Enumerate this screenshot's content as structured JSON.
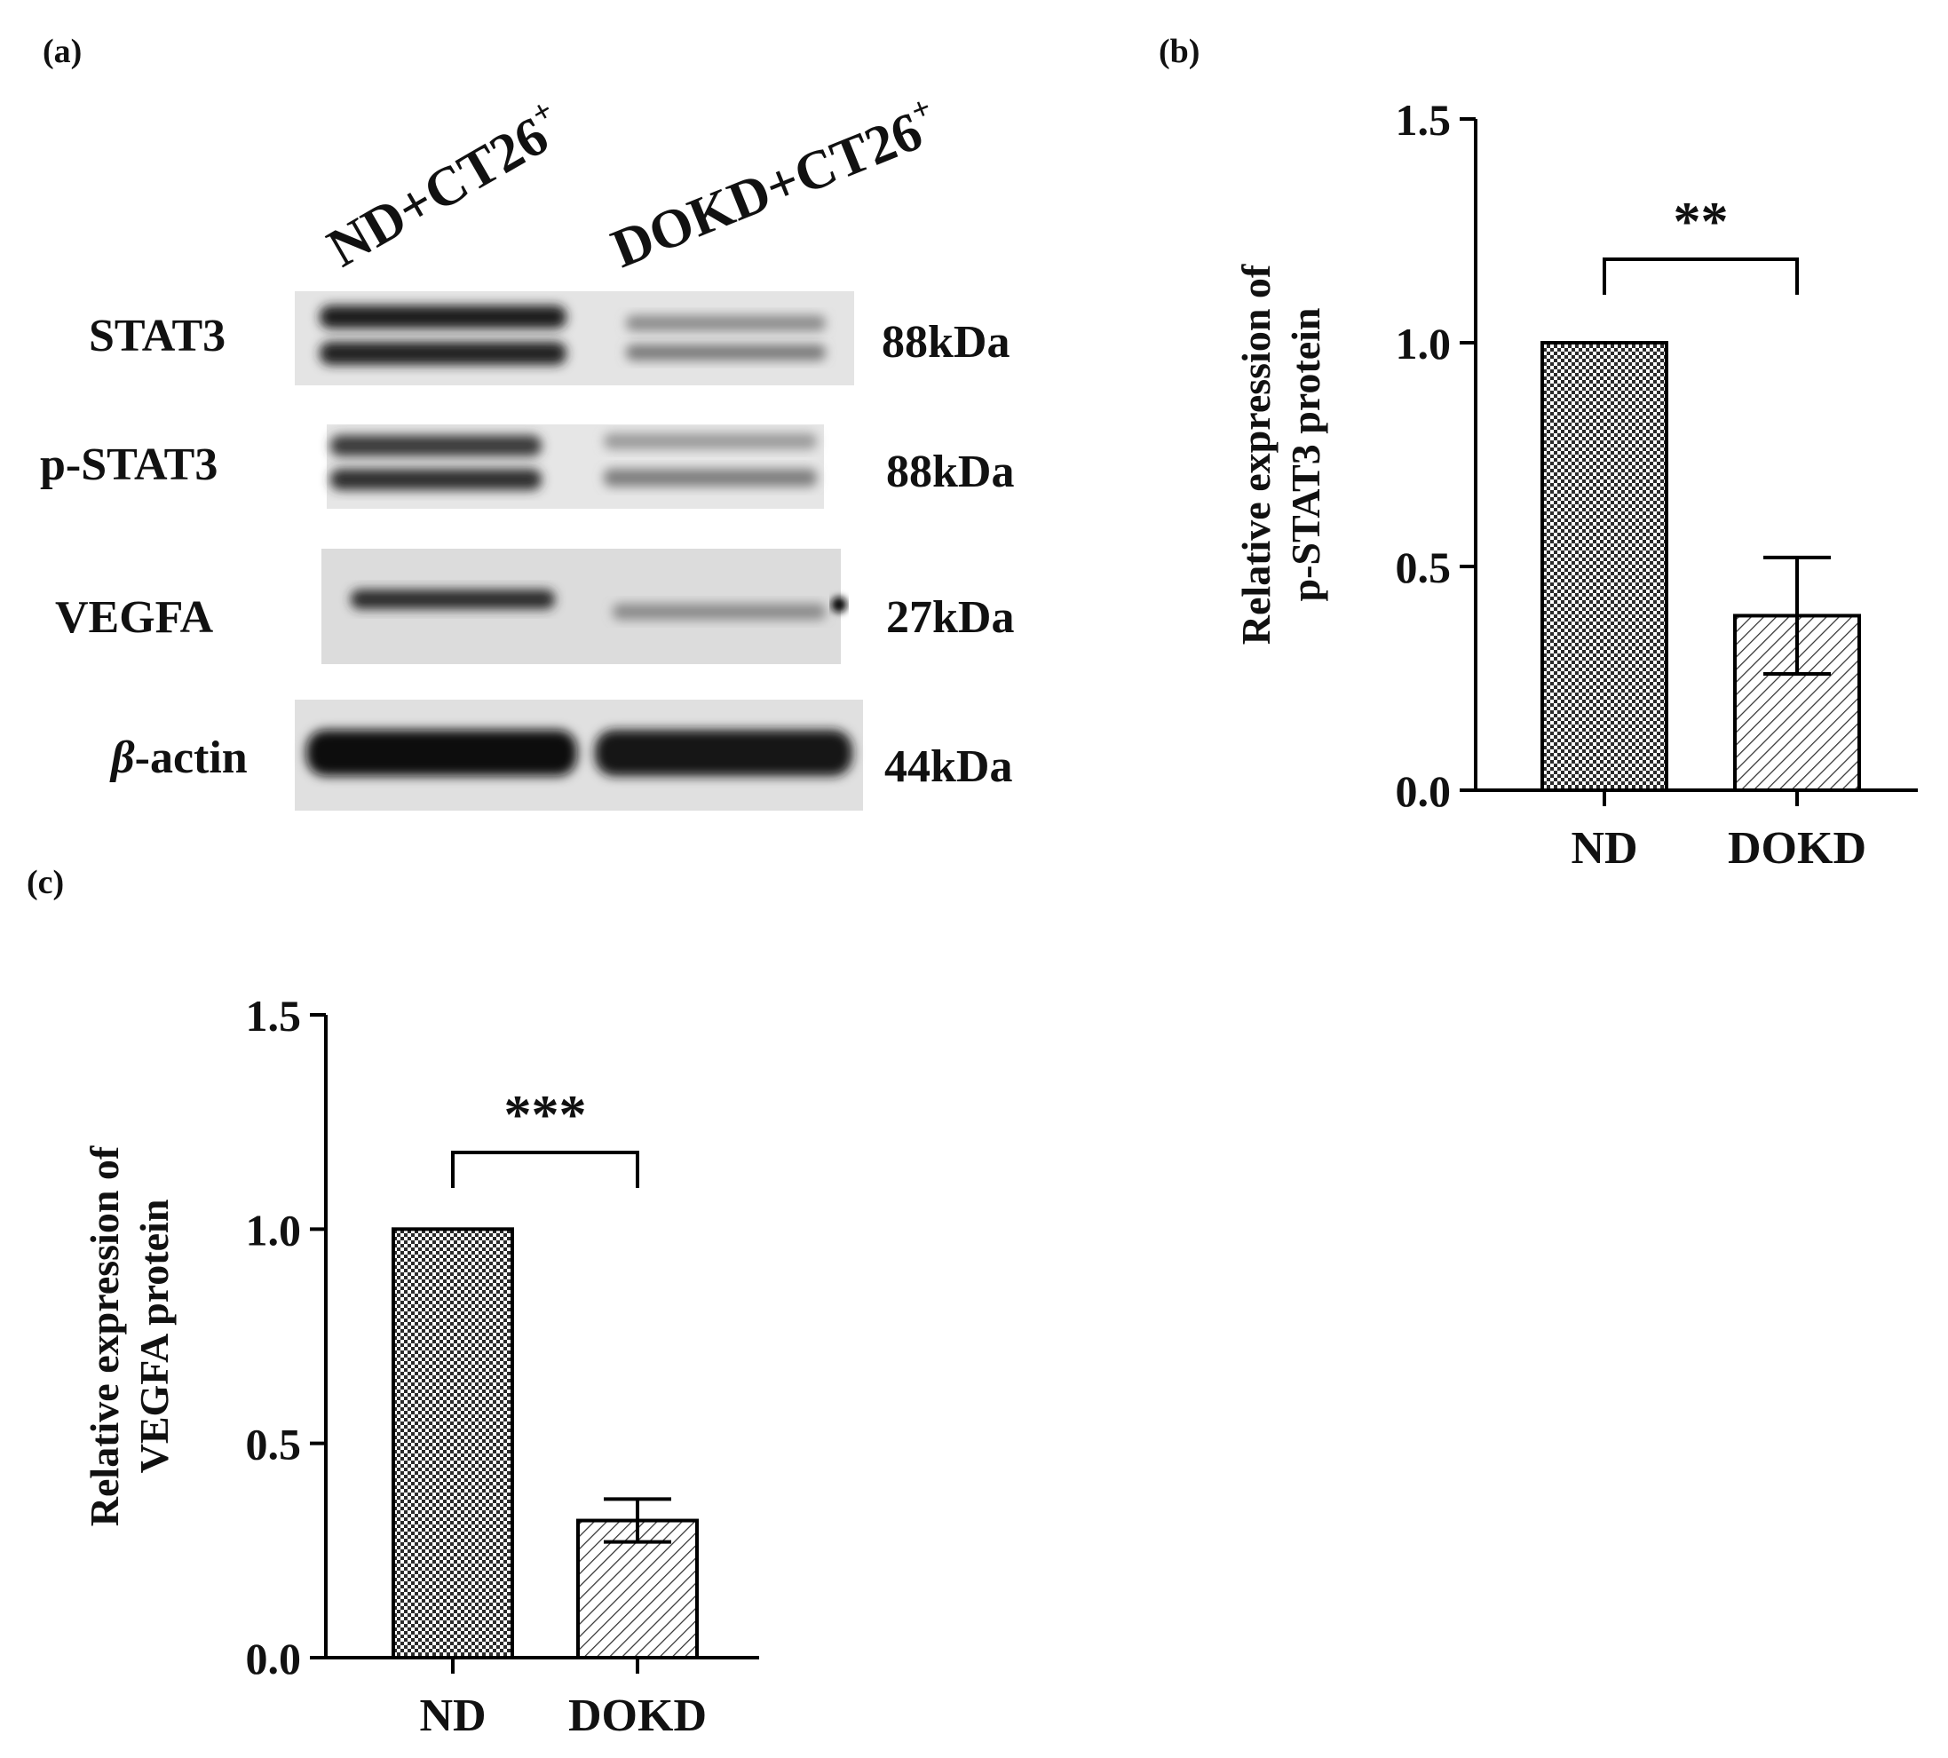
{
  "panels": {
    "a": "(a)",
    "b": "(b)",
    "c": "(c)"
  },
  "blot": {
    "lanes": [
      "ND+CT26",
      "DOKD+CT26"
    ],
    "lane_superscript": "+",
    "rows": [
      {
        "protein": "STAT3",
        "kda": "88kDa"
      },
      {
        "protein": "p-STAT3",
        "kda": "88kDa"
      },
      {
        "protein": "VEGFA",
        "kda": "27kDa"
      },
      {
        "protein_italic": "β",
        "protein_rest": "-actin",
        "kda": "44kDa"
      }
    ]
  },
  "chart_data": [
    {
      "type": "bar",
      "categories": [
        "ND",
        "DOKD"
      ],
      "values": [
        1.0,
        0.39
      ],
      "error": [
        0,
        0.13
      ],
      "ylabel_line1": "Relative expression of",
      "ylabel_line2": "p-STAT3 protein",
      "xlabel": "",
      "ylim": [
        0,
        1.5
      ],
      "yticks": [
        "0.0",
        "0.5",
        "1.0",
        "1.5"
      ],
      "significance": "**",
      "patterns": [
        "crosshatch",
        "diagonal"
      ]
    },
    {
      "type": "bar",
      "categories": [
        "ND",
        "DOKD"
      ],
      "values": [
        1.0,
        0.32
      ],
      "error": [
        0,
        0.05
      ],
      "ylabel_line1": "Relative expression of",
      "ylabel_line2": "VEGFA protein",
      "xlabel": "",
      "ylim": [
        0,
        1.5
      ],
      "yticks": [
        "0.0",
        "0.5",
        "1.0",
        "1.5"
      ],
      "significance": "***",
      "patterns": [
        "crosshatch",
        "diagonal"
      ]
    }
  ]
}
